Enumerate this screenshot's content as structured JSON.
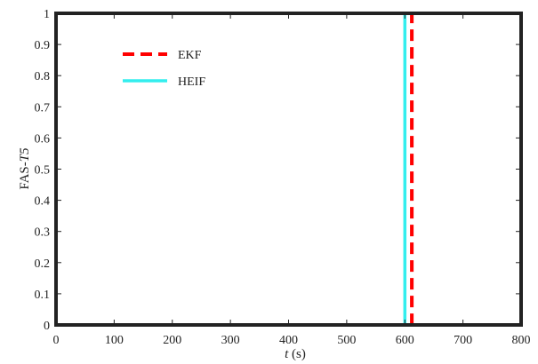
{
  "chart_data": {
    "type": "line",
    "title": "",
    "xlabel_italic": "t",
    "xlabel_rest": " (s)",
    "ylabel_prefix": "FAS-",
    "ylabel_italic": "T5",
    "xlim": [
      0,
      800
    ],
    "ylim": [
      0,
      1
    ],
    "xticks": [
      0,
      100,
      200,
      300,
      400,
      500,
      600,
      700,
      800
    ],
    "yticks": [
      0,
      0.1,
      0.2,
      0.3,
      0.4,
      0.5,
      0.6,
      0.7,
      0.8,
      0.9,
      1
    ],
    "grid": false,
    "legend_position": "top-left",
    "series": [
      {
        "name": "EKF",
        "style": "dashed",
        "color": "#ff0000",
        "x": [
          0,
          612,
          612,
          800
        ],
        "y": [
          0,
          0,
          1,
          1
        ]
      },
      {
        "name": "HEIF",
        "style": "solid",
        "color": "#33eeee",
        "x": [
          0,
          600,
          600,
          800
        ],
        "y": [
          0,
          0,
          1,
          1
        ]
      }
    ]
  }
}
